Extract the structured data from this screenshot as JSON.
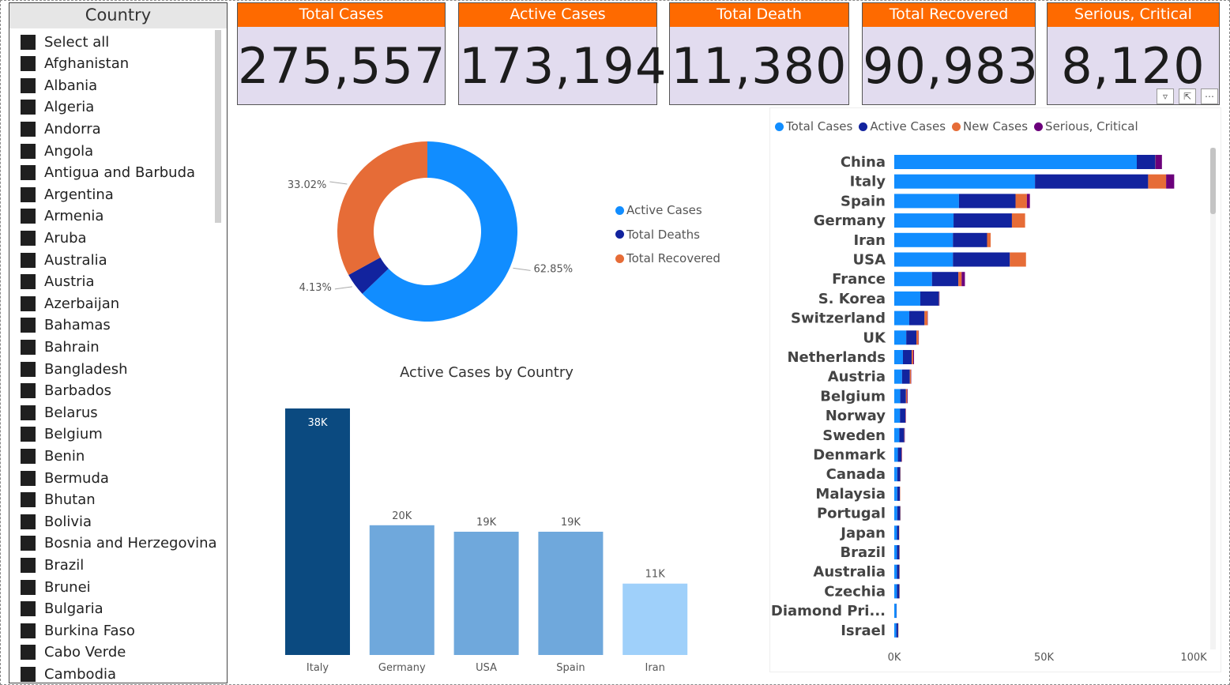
{
  "slicer": {
    "title": "Country",
    "items": [
      "Select all",
      "Afghanistan",
      "Albania",
      "Algeria",
      "Andorra",
      "Angola",
      "Antigua and Barbuda",
      "Argentina",
      "Armenia",
      "Aruba",
      "Australia",
      "Austria",
      "Azerbaijan",
      "Bahamas",
      "Bahrain",
      "Bangladesh",
      "Barbados",
      "Belarus",
      "Belgium",
      "Benin",
      "Bermuda",
      "Bhutan",
      "Bolivia",
      "Bosnia and Herzegovina",
      "Brazil",
      "Brunei",
      "Bulgaria",
      "Burkina Faso",
      "Cabo Verde",
      "Cambodia"
    ]
  },
  "cards": [
    {
      "title": "Total Cases",
      "value": "275,557"
    },
    {
      "title": "Active Cases",
      "value": "173,194"
    },
    {
      "title": "Total Death",
      "value": "11,380"
    },
    {
      "title": "Total Recovered",
      "value": "90,983"
    },
    {
      "title": "Serious, Critical",
      "value": "8,120"
    }
  ],
  "colors": {
    "accent_orange": "#fe6a00",
    "card_bg": "#e2dcef",
    "total_cases": "#118dff",
    "active_cases": "#12239e",
    "new_cases": "#e66c37",
    "serious_critical": "#6b007b"
  },
  "icons": [
    "filter-icon",
    "focus-mode-icon",
    "more-options-icon"
  ],
  "chart_data": [
    {
      "type": "pie",
      "variant": "donut",
      "labels": [
        "Active Cases",
        "Total Deaths",
        "Total Recovered"
      ],
      "values": [
        62.85,
        4.13,
        33.02
      ],
      "value_labels": [
        "62.85%",
        "4.13%",
        "33.02%"
      ],
      "colors": [
        "#118dff",
        "#12239e",
        "#e66c37"
      ],
      "legend_position": "right"
    },
    {
      "type": "bar",
      "orientation": "vertical",
      "title": "Active Cases by Country",
      "categories": [
        "Italy",
        "Germany",
        "USA",
        "Spain",
        "Iran"
      ],
      "values": [
        38000,
        20000,
        19000,
        19000,
        11000
      ],
      "value_labels": [
        "38K",
        "20K",
        "19K",
        "19K",
        "11K"
      ],
      "colors": [
        "#0b4a80",
        "#6fa8dc",
        "#6fa8dc",
        "#6fa8dc",
        "#9fd0fa"
      ],
      "grid": false
    },
    {
      "type": "bar",
      "orientation": "horizontal",
      "stacked": true,
      "legend_position": "top-left",
      "categories": [
        "China",
        "Italy",
        "Spain",
        "Germany",
        "Iran",
        "USA",
        "France",
        "S. Korea",
        "Switzerland",
        "UK",
        "Netherlands",
        "Austria",
        "Belgium",
        "Norway",
        "Sweden",
        "Denmark",
        "Canada",
        "Malaysia",
        "Portugal",
        "Japan",
        "Brazil",
        "Australia",
        "Czechia",
        "Diamond Pri...",
        "Israel"
      ],
      "series": [
        {
          "name": "Total Cases",
          "values": [
            81000,
            47000,
            21600,
            19800,
            19600,
            19600,
            12600,
            8700,
            5000,
            4000,
            2900,
            2600,
            2000,
            1900,
            1700,
            1200,
            1000,
            1000,
            1000,
            900,
            900,
            900,
            900,
            700,
            700
          ]
        },
        {
          "name": "Active Cases",
          "values": [
            6200,
            37800,
            18900,
            19500,
            11400,
            19000,
            8800,
            6200,
            5100,
            3400,
            2900,
            2600,
            1900,
            1800,
            1600,
            1200,
            1000,
            900,
            1000,
            700,
            800,
            800,
            800,
            100,
            600
          ]
        },
        {
          "name": "New Cases",
          "values": [
            100,
            6000,
            3800,
            4400,
            1200,
            5400,
            1100,
            100,
            1000,
            700,
            500,
            400,
            400,
            100,
            100,
            100,
            100,
            100,
            100,
            100,
            100,
            100,
            100,
            0,
            100
          ]
        },
        {
          "name": "Serious, Critical",
          "values": [
            2100,
            2700,
            1000,
            0,
            0,
            0,
            1100,
            100,
            100,
            100,
            300,
            100,
            200,
            100,
            100,
            100,
            0,
            0,
            0,
            0,
            0,
            0,
            0,
            0,
            0
          ]
        }
      ],
      "xlim": [
        0,
        100000
      ],
      "x_ticks": [
        "0K",
        "50K",
        "100K"
      ],
      "grid": false
    }
  ]
}
